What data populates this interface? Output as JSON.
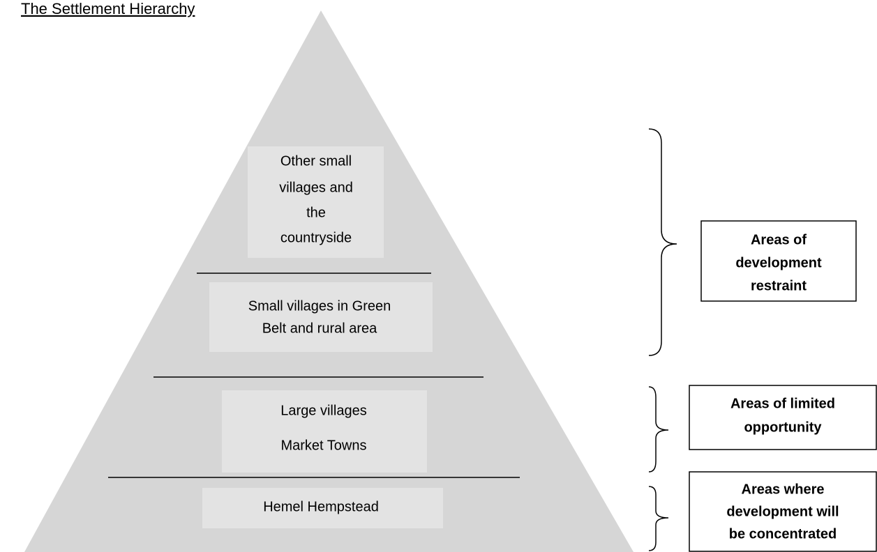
{
  "title": "The Settlement Hierarchy",
  "tiers": [
    {
      "lines": [
        "Other small",
        "villages and",
        "the",
        "countryside"
      ]
    },
    {
      "lines": [
        "Small villages in Green",
        "Belt and rural area"
      ]
    },
    {
      "lines": [
        "Large villages",
        "Market Towns"
      ]
    },
    {
      "lines": [
        "Hemel Hempstead"
      ]
    }
  ],
  "brackets": [
    {
      "lines": [
        "Areas of",
        "development",
        "restraint"
      ]
    },
    {
      "lines": [
        "Areas of limited",
        "opportunity"
      ]
    },
    {
      "lines": [
        "Areas where",
        "development will",
        "be concentrated"
      ]
    }
  ]
}
